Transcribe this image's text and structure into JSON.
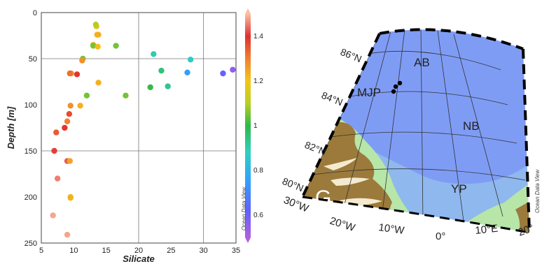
{
  "chart_data": [
    {
      "type": "scatter",
      "title": "",
      "xlabel": "Silicate",
      "ylabel": "Depth [m]",
      "xlim": [
        5,
        35
      ],
      "ylim": [
        250,
        0
      ],
      "y_inverted": true,
      "x_ticks": [
        5,
        10,
        15,
        20,
        25,
        30,
        35
      ],
      "y_ticks": [
        0,
        50,
        100,
        150,
        200,
        250
      ],
      "grid": "lines at x=20, x=30, y=50, y=150",
      "color_variable": {
        "label": "",
        "range": [
          0.5,
          1.5
        ],
        "ticks": [
          "1.4",
          "1.2",
          "1",
          "0.8",
          "0.6"
        ],
        "palette": [
          "#b060e0",
          "#6060ff",
          "#30a0ff",
          "#30d0c0",
          "#2fb84a",
          "#b8d020",
          "#f5c518",
          "#f08030",
          "#e03030",
          "#f8c0a0"
        ]
      },
      "watermark": "Ocean Data View",
      "points": [
        {
          "x": 13.5,
          "y": 15,
          "c": 1.18
        },
        {
          "x": 13.4,
          "y": 13,
          "c": 1.05
        },
        {
          "x": 13.6,
          "y": 24,
          "c": 1.2
        },
        {
          "x": 13.8,
          "y": 24,
          "c": 1.2
        },
        {
          "x": 13.0,
          "y": 35,
          "c": 1.2
        },
        {
          "x": 13.0,
          "y": 36,
          "c": 1.0
        },
        {
          "x": 13.7,
          "y": 37,
          "c": 1.18
        },
        {
          "x": 16.5,
          "y": 36,
          "c": 1.0
        },
        {
          "x": 11.4,
          "y": 50,
          "c": 1.0
        },
        {
          "x": 11.3,
          "y": 52,
          "c": 1.25
        },
        {
          "x": 9.6,
          "y": 66,
          "c": 1.25
        },
        {
          "x": 9.4,
          "y": 66,
          "c": 1.3
        },
        {
          "x": 10.5,
          "y": 67,
          "c": 1.38
        },
        {
          "x": 13.8,
          "y": 76,
          "c": 1.2
        },
        {
          "x": 12.0,
          "y": 90,
          "c": 1.0
        },
        {
          "x": 18.0,
          "y": 90,
          "c": 1.0
        },
        {
          "x": 9.5,
          "y": 101,
          "c": 1.25
        },
        {
          "x": 11.0,
          "y": 101,
          "c": 1.2
        },
        {
          "x": 9.3,
          "y": 110,
          "c": 1.35
        },
        {
          "x": 9.0,
          "y": 118,
          "c": 1.27
        },
        {
          "x": 8.6,
          "y": 125,
          "c": 1.38
        },
        {
          "x": 7.3,
          "y": 130,
          "c": 1.33
        },
        {
          "x": 7.0,
          "y": 150,
          "c": 1.4
        },
        {
          "x": 9.0,
          "y": 161,
          "c": 1.42
        },
        {
          "x": 9.4,
          "y": 161,
          "c": 1.22
        },
        {
          "x": 7.5,
          "y": 180,
          "c": 1.45
        },
        {
          "x": 9.5,
          "y": 200,
          "c": 1.18
        },
        {
          "x": 9.5,
          "y": 201,
          "c": 1.2
        },
        {
          "x": 6.8,
          "y": 220,
          "c": 1.48
        },
        {
          "x": 9.0,
          "y": 241,
          "c": 1.48
        },
        {
          "x": 22.3,
          "y": 45,
          "c": 0.85
        },
        {
          "x": 28.0,
          "y": 51,
          "c": 0.82
        },
        {
          "x": 23.5,
          "y": 63,
          "c": 0.9
        },
        {
          "x": 27.5,
          "y": 65,
          "c": 0.72
        },
        {
          "x": 33.0,
          "y": 66,
          "c": 0.6
        },
        {
          "x": 34.5,
          "y": 62,
          "c": 0.55
        },
        {
          "x": 21.8,
          "y": 81,
          "c": 0.95
        },
        {
          "x": 24.5,
          "y": 80,
          "c": 0.88
        }
      ]
    }
  ],
  "map": {
    "lat_labels": [
      "86°N",
      "84°N",
      "82°N",
      "80°N"
    ],
    "lon_labels": [
      "30°W",
      "20°W",
      "10°W",
      "0°",
      "10°E",
      "20°"
    ],
    "regions": [
      {
        "label": "AB"
      },
      {
        "label": "MJP"
      },
      {
        "label": "NB"
      },
      {
        "label": "YP"
      },
      {
        "label": "G"
      }
    ],
    "watermark": "Ocean Data View",
    "colors": {
      "deep": "#7f9cf5",
      "mid": "#8fb8ee",
      "shelf": "#b7e6a8",
      "shallow": "#dff1b5",
      "land": "#9b7a3b",
      "ice_edge": "#f3ead0"
    }
  }
}
